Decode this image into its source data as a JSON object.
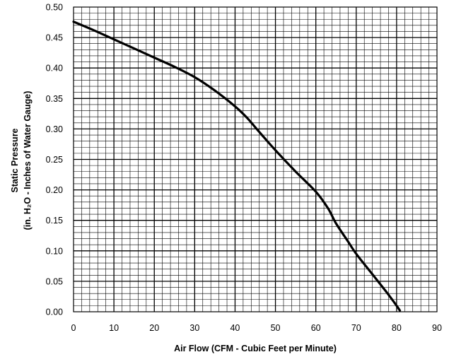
{
  "chart_data": {
    "type": "line",
    "title": "",
    "xlabel": "Air Flow (CFM - Cubic Feet per Minute)",
    "ylabel_line1": "Static Pressure",
    "ylabel_line2": "(in. H₂O - Inches of Water Gauge)",
    "xlim": [
      0,
      90
    ],
    "ylim": [
      0,
      0.5
    ],
    "xticks": [
      "0",
      "10",
      "20",
      "30",
      "40",
      "50",
      "60",
      "70",
      "80",
      "90"
    ],
    "yticks": [
      "0.00",
      "0.05",
      "0.10",
      "0.15",
      "0.20",
      "0.25",
      "0.30",
      "0.35",
      "0.40",
      "0.45",
      "0.50"
    ],
    "grid": true,
    "series": [
      {
        "x": [
          0,
          5,
          10,
          15,
          20,
          25,
          30,
          35,
          40,
          43,
          46,
          50,
          55,
          60,
          63,
          65,
          68,
          70,
          73,
          76,
          78,
          80,
          80.8
        ],
        "y": [
          0.476,
          0.462,
          0.447,
          0.432,
          0.417,
          0.402,
          0.385,
          0.363,
          0.337,
          0.318,
          0.295,
          0.265,
          0.23,
          0.197,
          0.17,
          0.145,
          0.115,
          0.095,
          0.07,
          0.045,
          0.028,
          0.01,
          0.002
        ],
        "color": "#000000"
      }
    ]
  }
}
